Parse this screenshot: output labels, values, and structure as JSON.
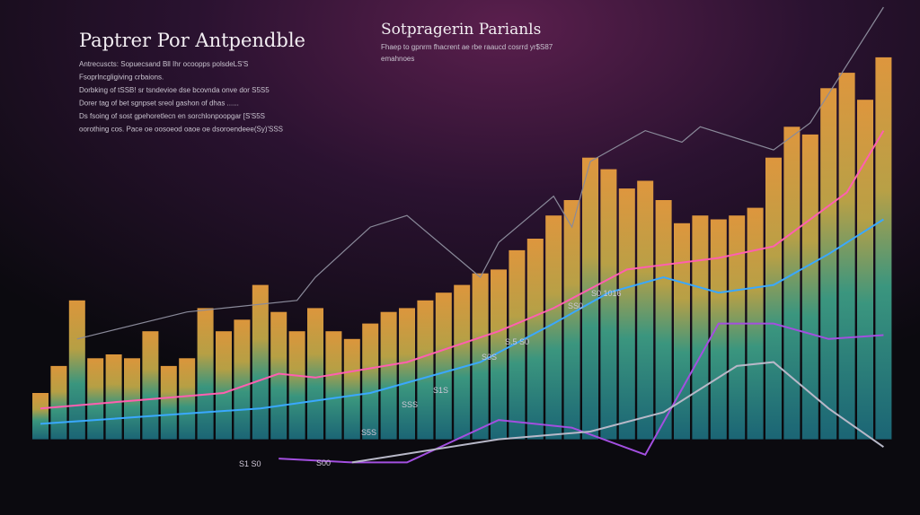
{
  "header": {
    "title": "Paptrer Por Antpendble",
    "lines": [
      "Antrecuscts: Sopuecsand Bll Ihr ocoopps polsdeLS'S",
      "Fsoprlncgligiving crbaions.",
      "Dorbking of tSSB! sr tsndevioe dse bcovnda onve dor S5S5",
      "Dorer tag of bet sgnpset sreol gashon of dhas ......",
      "Ds fsoing of sost gpehoretlecn en sorchlonpoopgar [S'S5S",
      "oorothing cos. Pace oe oosoeod oaoe oe dsoroendeee(Sy)'SSS"
    ]
  },
  "subheader": {
    "title": "Sotpragerin Parianls",
    "lines": [
      "Fhaep to gpnrm fhacrent ae rbe raaucd cosrrd yr$S87",
      "emahnoes"
    ]
  },
  "chart_data": {
    "type": "bar",
    "categories": [
      null,
      null,
      null,
      null,
      null,
      null,
      null,
      null,
      null,
      null,
      null,
      null,
      null,
      null,
      null,
      null,
      null,
      null,
      null,
      null,
      null,
      null,
      null,
      null,
      null,
      null,
      null,
      null,
      null,
      null,
      null,
      null,
      null,
      null,
      null,
      null,
      null,
      null,
      null,
      null,
      null,
      null,
      null,
      null,
      null,
      null,
      null
    ],
    "values": [
      12,
      19,
      36,
      21,
      22,
      21,
      28,
      19,
      21,
      34,
      28,
      31,
      40,
      33,
      28,
      34,
      28,
      26,
      30,
      33,
      34,
      36,
      38,
      40,
      43,
      44,
      49,
      52,
      58,
      62,
      73,
      70,
      65,
      67,
      62,
      56,
      58,
      57,
      58,
      60,
      73,
      81,
      79,
      91,
      95,
      88,
      99
    ],
    "ylim": [
      -18,
      112
    ],
    "lines": [
      {
        "color": "#8a8a9a",
        "x": [
          2,
          8,
          14,
          15,
          18,
          20,
          24,
          25,
          28,
          29,
          30,
          33,
          35,
          36,
          40,
          42,
          46
        ],
        "values": [
          26,
          33,
          36,
          42,
          55,
          58,
          42,
          51,
          63,
          55,
          72,
          80,
          77,
          81,
          75,
          82,
          112
        ]
      },
      {
        "color": "#ff5fb0",
        "x": [
          0,
          5,
          10,
          13,
          15,
          20,
          25,
          28,
          32,
          37,
          40,
          44,
          46
        ],
        "values": [
          8,
          10,
          12,
          17,
          16,
          20,
          28,
          34,
          44,
          47,
          50,
          64,
          80
        ]
      },
      {
        "color": "#3aa8ff",
        "x": [
          0,
          6,
          12,
          18,
          24,
          28,
          31,
          34,
          37,
          40,
          43,
          46
        ],
        "values": [
          4,
          6,
          8,
          12,
          20,
          30,
          38,
          42,
          38,
          40,
          48,
          57
        ]
      },
      {
        "color": "#a34fe0",
        "x": [
          13,
          17,
          20,
          25,
          29,
          33,
          37,
          40,
          43,
          46
        ],
        "values": [
          -5,
          -6,
          -6,
          5,
          3,
          -4,
          30,
          30,
          26,
          27
        ]
      },
      {
        "color": "#b8b8c8",
        "x": [
          17,
          25,
          30,
          34,
          38,
          40,
          43,
          46
        ],
        "values": [
          -6,
          0,
          2,
          7,
          19,
          20,
          8,
          -2
        ]
      }
    ],
    "annotations": [
      "S0 1016",
      "SS0",
      "S.5 S0",
      "S0S",
      "S1S",
      "SSS",
      "S5S",
      "S00",
      "S1 S0"
    ]
  }
}
